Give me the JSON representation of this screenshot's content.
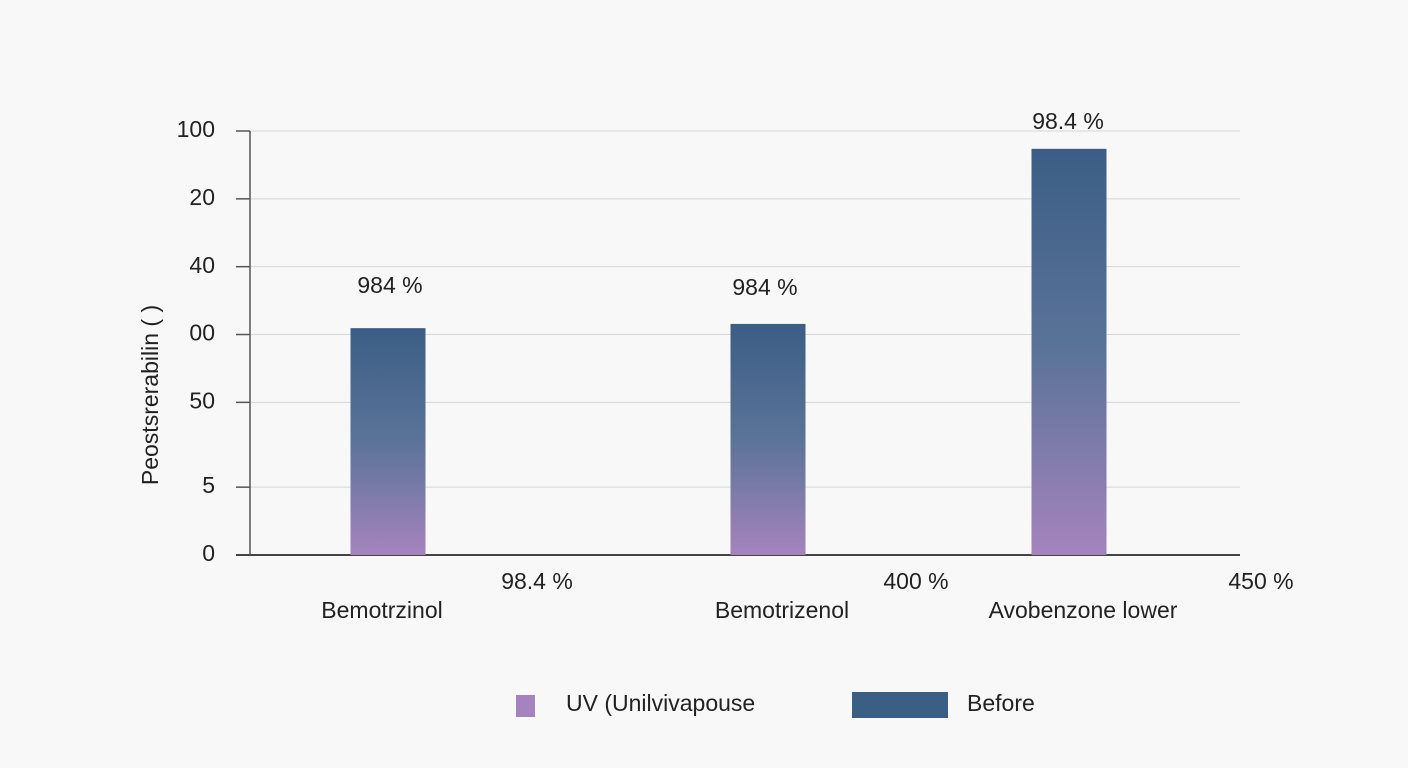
{
  "chart_data": {
    "type": "bar",
    "y_label": "Peostsrerabilin ( )",
    "categories": [
      "Bemotrzinol",
      "Bemotrizenol",
      "Avobenzone lower"
    ],
    "series": [
      {
        "name": "Before",
        "color": "#3b5e85",
        "values": [
          53.5,
          54.5,
          95.8
        ]
      }
    ],
    "legend_entries": [
      {
        "name": "UV (Unilvivapouse",
        "color": "#a584bd"
      }
    ],
    "ylim": [
      0,
      100
    ],
    "yticks": [
      0,
      {
        "value": 16,
        "label": "5"
      },
      {
        "value": 36,
        "label": "50"
      },
      {
        "value": 52,
        "label": "00"
      },
      {
        "value": 68,
        "label": "40"
      },
      {
        "value": 84,
        "label": "20"
      },
      100
    ],
    "grid": true,
    "annotations": [
      "984 %",
      "984 %",
      "98.4 %",
      "98.4 %",
      "400 %",
      "450 %"
    ]
  }
}
